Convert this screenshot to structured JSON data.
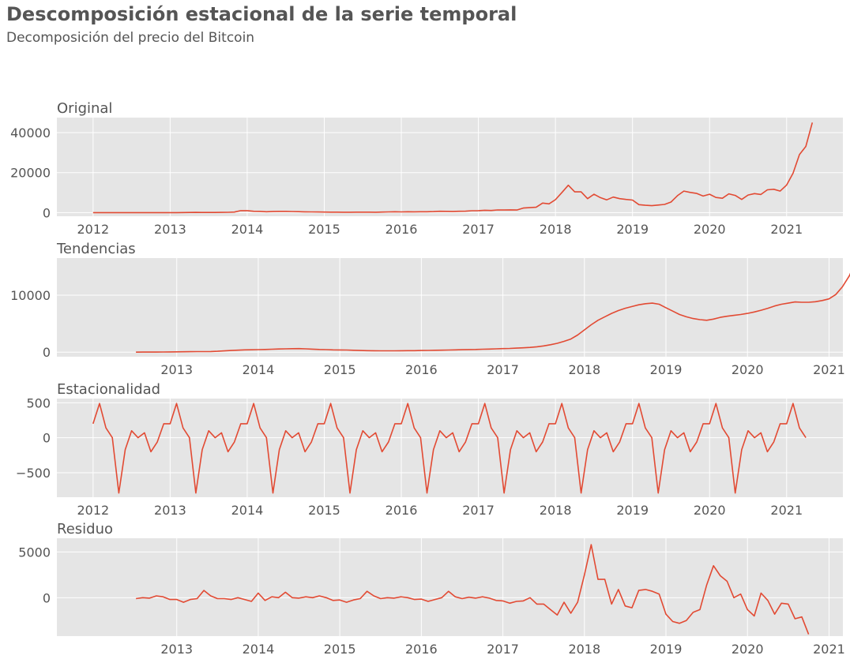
{
  "title": "Descomposición estacional de la serie temporal",
  "subtitle": "Decomposición del precio del Bitcoin",
  "colors": {
    "line": "#e24a33",
    "panel_bg": "#e5e5e5",
    "grid": "#ffffff",
    "text": "#555555"
  },
  "chart_data": [
    {
      "type": "line",
      "title": "Original",
      "x_start": 2012.0,
      "x_step": 0.08333,
      "xlim": [
        2011.53,
        2021.73
      ],
      "ylim": [
        -1800,
        47500
      ],
      "xticks": [
        2012,
        2013,
        2014,
        2015,
        2016,
        2017,
        2018,
        2019,
        2020,
        2021
      ],
      "yticks": [
        0,
        20000,
        40000
      ],
      "grid": true,
      "values": [
        5,
        5,
        5,
        5,
        5,
        6,
        7,
        10,
        11,
        10,
        8,
        10,
        15,
        30,
        60,
        100,
        120,
        100,
        90,
        110,
        130,
        190,
        300,
        1000,
        1000,
        700,
        630,
        450,
        600,
        640,
        630,
        580,
        480,
        400,
        380,
        320,
        280,
        250,
        240,
        230,
        230,
        240,
        260,
        240,
        230,
        310,
        370,
        430,
        380,
        440,
        420,
        460,
        450,
        540,
        670,
        650,
        610,
        700,
        740,
        960,
        1000,
        1180,
        1080,
        1350,
        1300,
        1400,
        1300,
        2300,
        2500,
        2700,
        4800,
        4400,
        6500,
        10000,
        13700,
        10400,
        10400,
        7000,
        9200,
        7500,
        6400,
        7800,
        7000,
        6600,
        6300,
        4000,
        3700,
        3500,
        3800,
        4100,
        5300,
        8500,
        10800,
        10100,
        9600,
        8300,
        9200,
        7600,
        7200,
        9400,
        8600,
        6600,
        8800,
        9500,
        9100,
        11400,
        11700,
        10800,
        13800,
        19700,
        29000,
        33100,
        45000
      ]
    },
    {
      "type": "line",
      "title": "Tendencias",
      "x_start": 2012.5,
      "x_step": 0.08333,
      "xlim": [
        2011.53,
        2021.17
      ],
      "ylim": [
        -800,
        16500
      ],
      "xticks": [
        2013,
        2014,
        2015,
        2016,
        2017,
        2018,
        2019,
        2020,
        2021
      ],
      "yticks": [
        0,
        10000
      ],
      "grid": true,
      "values": [
        5,
        10,
        15,
        20,
        30,
        45,
        60,
        75,
        90,
        100,
        100,
        110,
        160,
        230,
        300,
        350,
        400,
        420,
        450,
        480,
        520,
        560,
        590,
        610,
        620,
        580,
        530,
        480,
        440,
        410,
        390,
        370,
        340,
        300,
        270,
        250,
        240,
        240,
        240,
        250,
        260,
        270,
        290,
        310,
        330,
        350,
        380,
        410,
        430,
        460,
        480,
        510,
        540,
        580,
        620,
        660,
        710,
        770,
        840,
        950,
        1100,
        1300,
        1550,
        1900,
        2300,
        3000,
        3900,
        4800,
        5600,
        6200,
        6800,
        7300,
        7700,
        8000,
        8300,
        8500,
        8600,
        8400,
        7800,
        7200,
        6600,
        6200,
        5900,
        5700,
        5600,
        5800,
        6100,
        6300,
        6450,
        6600,
        6800,
        7050,
        7350,
        7700,
        8100,
        8400,
        8600,
        8800,
        8750,
        8750,
        8850,
        9050,
        9350,
        10100,
        11500,
        13400,
        16100
      ]
    },
    {
      "type": "line",
      "title": "Estacionalidad",
      "x_start": 2012.0,
      "x_step": 0.08333,
      "xlim": [
        2011.53,
        2021.73
      ],
      "ylim": [
        -850,
        560
      ],
      "xticks": [
        2012,
        2013,
        2014,
        2015,
        2016,
        2017,
        2018,
        2019,
        2020,
        2021
      ],
      "yticks": [
        -500,
        0,
        500
      ],
      "grid": true,
      "season": [
        200,
        490,
        140,
        0,
        -790,
        -170,
        100,
        0,
        70,
        -200,
        -60,
        200
      ],
      "periods": 9,
      "tail": [
        200,
        490,
        140,
        0
      ]
    },
    {
      "type": "line",
      "title": "Residuo",
      "x_start": 2012.5,
      "x_step": 0.08333,
      "xlim": [
        2011.53,
        2021.17
      ],
      "ylim": [
        -4200,
        6500
      ],
      "xticks": [
        2013,
        2014,
        2015,
        2016,
        2017,
        2018,
        2019,
        2020,
        2021
      ],
      "yticks": [
        0,
        5000
      ],
      "grid": true,
      "values": [
        -100,
        0,
        -50,
        200,
        100,
        -200,
        -200,
        -500,
        -200,
        -100,
        800,
        200,
        -100,
        -100,
        -200,
        0,
        -200,
        -400,
        500,
        -300,
        100,
        0,
        600,
        0,
        -50,
        100,
        0,
        200,
        0,
        -300,
        -250,
        -500,
        -250,
        -100,
        700,
        200,
        -100,
        0,
        -50,
        100,
        0,
        -200,
        -150,
        -400,
        -200,
        0,
        700,
        100,
        -100,
        50,
        -50,
        100,
        -50,
        -300,
        -350,
        -600,
        -400,
        -350,
        0,
        -700,
        -700,
        -1300,
        -1900,
        -500,
        -1700,
        -500,
        2500,
        5800,
        2000,
        2000,
        -700,
        900,
        -900,
        -1100,
        800,
        900,
        700,
        400,
        -1800,
        -2600,
        -2800,
        -2500,
        -1600,
        -1300,
        1400,
        3500,
        2400,
        1800,
        0,
        400,
        -1300,
        -2000,
        500,
        -300,
        -1800,
        -600,
        -700,
        -2300,
        -2100,
        -4000
      ]
    }
  ]
}
